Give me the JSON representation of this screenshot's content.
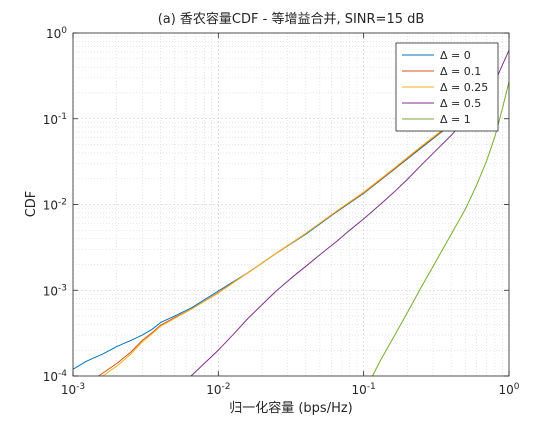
{
  "chart_data": {
    "type": "line",
    "title": "(a) 香农容量CDF - 等增益合并, SINR=15 dB",
    "xlabel": "归一化容量 (bps/Hz)",
    "ylabel": "CDF",
    "xscale": "log",
    "yscale": "log",
    "xlim": [
      0.001,
      1
    ],
    "ylim": [
      0.0001,
      1
    ],
    "grid": true,
    "minor_grid": true,
    "legend_position": "top-right",
    "x_ticks": [
      {
        "value": 0.001,
        "base": "10",
        "exp": "-3"
      },
      {
        "value": 0.01,
        "base": "10",
        "exp": "-2"
      },
      {
        "value": 0.1,
        "base": "10",
        "exp": "-1"
      },
      {
        "value": 1,
        "base": "10",
        "exp": "0"
      }
    ],
    "y_ticks": [
      {
        "value": 0.0001,
        "base": "10",
        "exp": "-4"
      },
      {
        "value": 0.001,
        "base": "10",
        "exp": "-3"
      },
      {
        "value": 0.01,
        "base": "10",
        "exp": "-2"
      },
      {
        "value": 0.1,
        "base": "10",
        "exp": "-1"
      },
      {
        "value": 1,
        "base": "10",
        "exp": "0"
      }
    ],
    "series": [
      {
        "name": "Δ = 0",
        "color": "#0072BD",
        "x": [
          0.001,
          0.00125,
          0.0016,
          0.002,
          0.0025,
          0.003,
          0.0035,
          0.004,
          0.005,
          0.0065,
          0.01,
          0.016,
          0.025,
          0.04,
          0.065,
          0.1,
          0.16,
          0.25,
          0.4,
          0.6
        ],
        "y": [
          0.00012,
          0.00015,
          0.00018,
          0.00022,
          0.00026,
          0.0003,
          0.00035,
          0.00042,
          0.0005,
          0.00062,
          0.00098,
          0.0016,
          0.0027,
          0.0045,
          0.0082,
          0.0135,
          0.0252,
          0.046,
          0.086,
          0.145
        ]
      },
      {
        "name": "Δ = 0.1",
        "color": "#D95319",
        "x": [
          0.0015,
          0.002,
          0.0025,
          0.003,
          0.0035,
          0.004,
          0.005,
          0.0065,
          0.01,
          0.016,
          0.025,
          0.04,
          0.065,
          0.1,
          0.16,
          0.25,
          0.4,
          0.6
        ],
        "y": [
          0.0001,
          0.00014,
          0.00019,
          0.00026,
          0.00032,
          0.00039,
          0.00048,
          0.0006,
          0.00094,
          0.0016,
          0.0027,
          0.0046,
          0.0083,
          0.0137,
          0.0255,
          0.047,
          0.087,
          0.147
        ]
      },
      {
        "name": "Δ = 0.25",
        "color": "#EDB120",
        "x": [
          0.0016,
          0.002,
          0.0025,
          0.003,
          0.0035,
          0.004,
          0.005,
          0.0065,
          0.01,
          0.016,
          0.025,
          0.04,
          0.065,
          0.1,
          0.16,
          0.25,
          0.4,
          0.6
        ],
        "y": [
          0.0001,
          0.00013,
          0.00018,
          0.00025,
          0.00031,
          0.00038,
          0.00047,
          0.0006,
          0.00093,
          0.0016,
          0.0027,
          0.0046,
          0.0084,
          0.0139,
          0.026,
          0.048,
          0.089,
          0.15
        ]
      },
      {
        "name": "Δ = 0.5",
        "color": "#7E2F8E",
        "x": [
          0.0065,
          0.008,
          0.01,
          0.013,
          0.016,
          0.02,
          0.025,
          0.032,
          0.04,
          0.05,
          0.065,
          0.08,
          0.1,
          0.13,
          0.16,
          0.2,
          0.25,
          0.32,
          0.4,
          0.5,
          0.65,
          0.8,
          1
        ],
        "y": [
          0.0001,
          0.00014,
          0.0002,
          0.00032,
          0.00047,
          0.00068,
          0.00098,
          0.0014,
          0.0019,
          0.0026,
          0.0037,
          0.005,
          0.0068,
          0.01,
          0.0137,
          0.0196,
          0.029,
          0.044,
          0.064,
          0.098,
          0.16,
          0.27,
          0.63
        ]
      },
      {
        "name": "Δ = 1",
        "color": "#77AC30",
        "x": [
          0.115,
          0.13,
          0.16,
          0.2,
          0.25,
          0.32,
          0.4,
          0.5,
          0.6,
          0.7,
          0.8,
          0.9,
          1
        ],
        "y": [
          0.0001,
          0.00015,
          0.00028,
          0.00055,
          0.0011,
          0.0023,
          0.0045,
          0.0088,
          0.017,
          0.032,
          0.062,
          0.13,
          0.27
        ]
      }
    ]
  }
}
